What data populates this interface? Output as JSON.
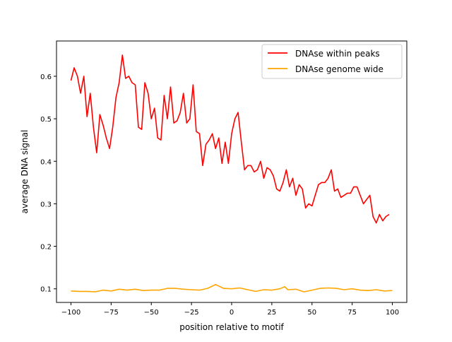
{
  "chart_data": {
    "type": "line",
    "title": "",
    "xlabel": "position relative to motif",
    "ylabel": "average DNA signal",
    "xlim": [
      -109,
      109
    ],
    "ylim": [
      0.068,
      0.683
    ],
    "xticks": [
      -100,
      -75,
      -50,
      -25,
      0,
      25,
      50,
      75,
      100
    ],
    "xtick_labels": [
      "−100",
      "−75",
      "−50",
      "−25",
      "0",
      "25",
      "50",
      "75",
      "100"
    ],
    "yticks": [
      0.1,
      0.2,
      0.3,
      0.4,
      0.5,
      0.6
    ],
    "ytick_labels": [
      "0.1",
      "0.2",
      "0.3",
      "0.4",
      "0.5",
      "0.6"
    ],
    "grid": false,
    "legend_position": "top-right",
    "series": [
      {
        "name": "DNAse within peaks",
        "color": "#ff0000",
        "x": [
          -100,
          -98,
          -96,
          -94,
          -92,
          -90,
          -88,
          -86,
          -84,
          -82,
          -80,
          -78,
          -76,
          -74,
          -72,
          -70,
          -68,
          -66,
          -64,
          -62,
          -60,
          -58,
          -56,
          -54,
          -52,
          -50,
          -48,
          -46,
          -44,
          -42,
          -40,
          -38,
          -36,
          -34,
          -32,
          -30,
          -28,
          -26,
          -24,
          -22,
          -20,
          -18,
          -16,
          -14,
          -12,
          -10,
          -8,
          -6,
          -4,
          -2,
          0,
          2,
          4,
          6,
          8,
          10,
          12,
          14,
          16,
          18,
          20,
          22,
          24,
          26,
          28,
          30,
          32,
          34,
          36,
          38,
          40,
          42,
          44,
          46,
          48,
          50,
          52,
          54,
          56,
          58,
          60,
          62,
          64,
          66,
          68,
          70,
          72,
          74,
          76,
          78,
          80,
          82,
          84,
          86,
          88,
          90,
          92,
          94,
          96,
          98
        ],
        "y": [
          0.59,
          0.62,
          0.6,
          0.56,
          0.6,
          0.505,
          0.56,
          0.48,
          0.42,
          0.51,
          0.485,
          0.455,
          0.43,
          0.48,
          0.55,
          0.585,
          0.65,
          0.595,
          0.6,
          0.585,
          0.58,
          0.48,
          0.475,
          0.585,
          0.56,
          0.5,
          0.525,
          0.455,
          0.45,
          0.555,
          0.5,
          0.575,
          0.49,
          0.495,
          0.515,
          0.56,
          0.49,
          0.5,
          0.58,
          0.47,
          0.465,
          0.39,
          0.44,
          0.45,
          0.465,
          0.43,
          0.455,
          0.395,
          0.445,
          0.395,
          0.465,
          0.5,
          0.515,
          0.445,
          0.38,
          0.39,
          0.39,
          0.375,
          0.38,
          0.4,
          0.36,
          0.385,
          0.38,
          0.365,
          0.335,
          0.33,
          0.35,
          0.38,
          0.34,
          0.36,
          0.32,
          0.345,
          0.335,
          0.29,
          0.3,
          0.295,
          0.32,
          0.345,
          0.35,
          0.35,
          0.36,
          0.38,
          0.33,
          0.335,
          0.315,
          0.32,
          0.325,
          0.325,
          0.34,
          0.34,
          0.32,
          0.3,
          0.31,
          0.32,
          0.27,
          0.255,
          0.275,
          0.26,
          0.27,
          0.275
        ]
      },
      {
        "name": "DNAse genome wide",
        "color": "#ffa500",
        "x": [
          -100,
          -95,
          -90,
          -85,
          -80,
          -75,
          -70,
          -65,
          -60,
          -55,
          -50,
          -45,
          -40,
          -35,
          -30,
          -25,
          -20,
          -15,
          -10,
          -5,
          0,
          5,
          10,
          15,
          20,
          25,
          30,
          33,
          35,
          40,
          45,
          50,
          55,
          60,
          65,
          70,
          75,
          80,
          85,
          90,
          95,
          100
        ],
        "y": [
          0.095,
          0.094,
          0.094,
          0.093,
          0.097,
          0.095,
          0.099,
          0.097,
          0.099,
          0.096,
          0.097,
          0.097,
          0.101,
          0.101,
          0.099,
          0.098,
          0.097,
          0.101,
          0.11,
          0.101,
          0.1,
          0.102,
          0.098,
          0.094,
          0.098,
          0.097,
          0.1,
          0.105,
          0.098,
          0.099,
          0.093,
          0.097,
          0.101,
          0.102,
          0.101,
          0.098,
          0.1,
          0.097,
          0.096,
          0.098,
          0.095,
          0.096
        ]
      }
    ]
  }
}
